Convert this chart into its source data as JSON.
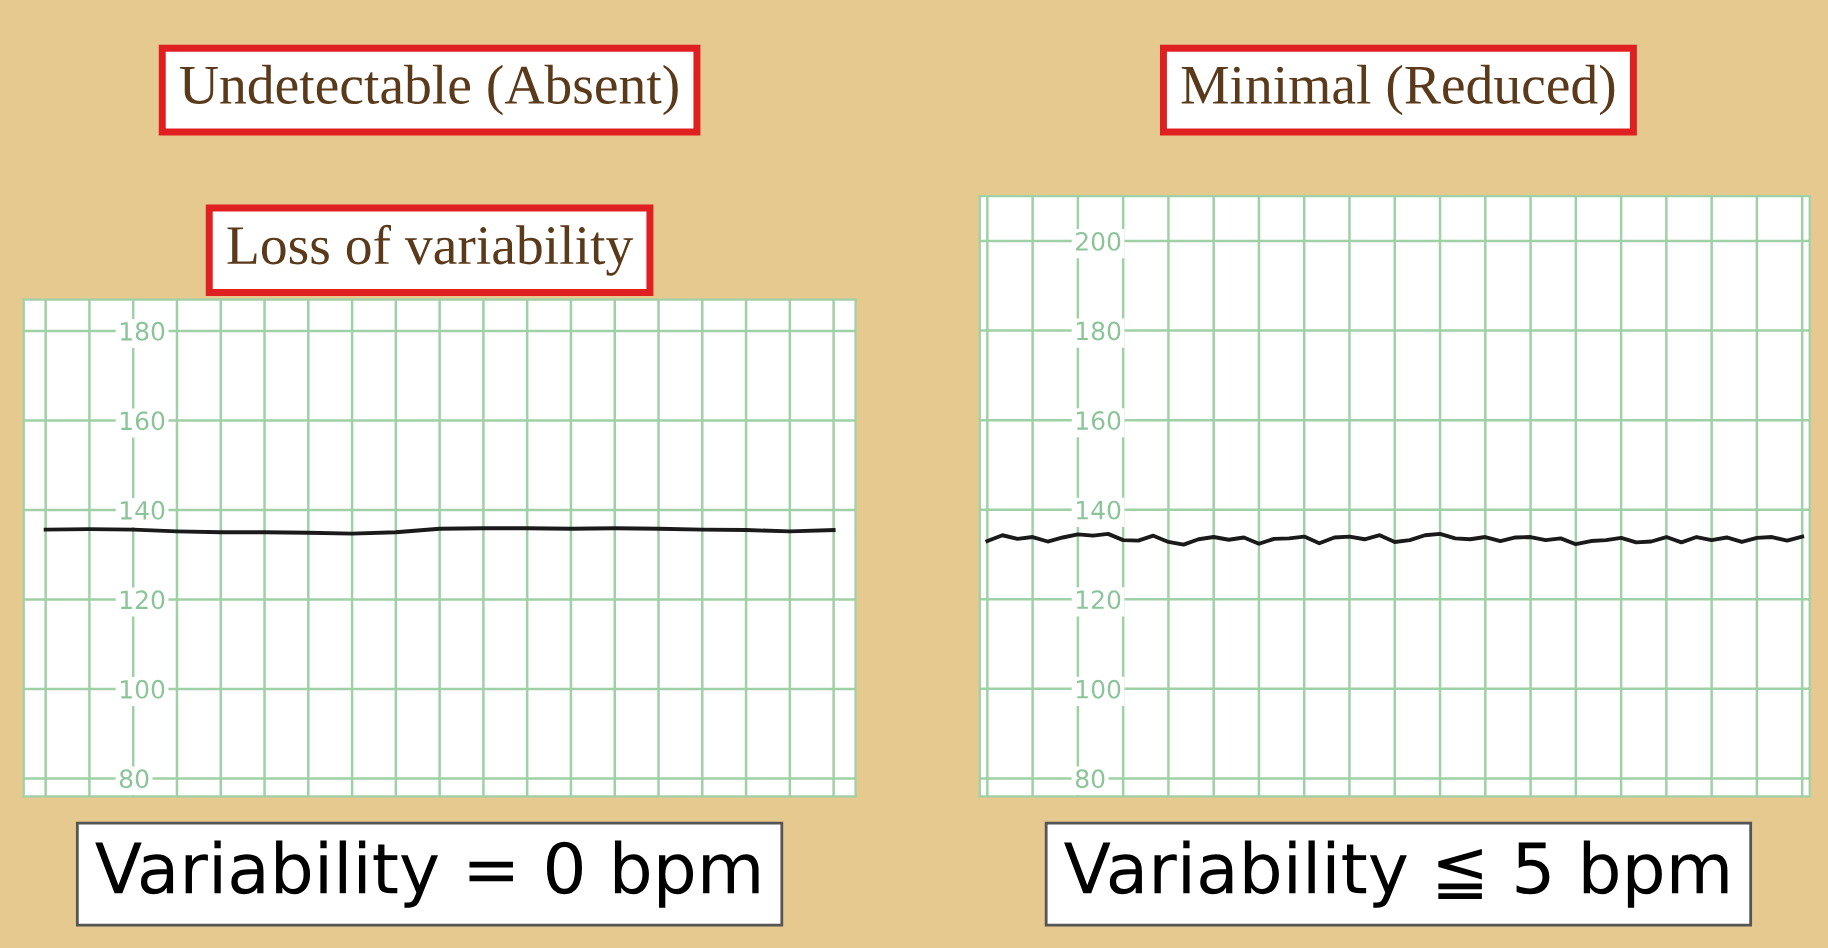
{
  "chart_data": [
    {
      "type": "line",
      "title": "Undetectable (Absent)",
      "annotations": [
        "Loss of variability",
        "Variability = 0 bpm"
      ],
      "categories": [
        null,
        null,
        null,
        null,
        null,
        null,
        null,
        null,
        null,
        null,
        null,
        null,
        null,
        null,
        null,
        null,
        null,
        null,
        null
      ],
      "series": [
        {
          "color": "#1a1a1a",
          "values": [
            135.6,
            135.7,
            135.6,
            135.2,
            135.0,
            135.0,
            134.9,
            134.7,
            135.0,
            135.8,
            135.9,
            135.9,
            135.8,
            135.9,
            135.8,
            135.6,
            135.5,
            135.2,
            135.5
          ]
        }
      ],
      "ylim": [
        76,
        187
      ],
      "yticks": [
        80,
        100,
        120,
        140,
        160,
        180
      ],
      "grid": true,
      "tick_labels": "y",
      "marker": "none",
      "line_style": "solid"
    },
    {
      "type": "line",
      "title": "Minimal (Reduced)",
      "annotations": [
        "Variability ≦ 5 bpm"
      ],
      "categories": [
        null,
        null,
        null,
        null,
        null,
        null,
        null,
        null,
        null,
        null,
        null,
        null,
        null,
        null,
        null,
        null,
        null,
        null,
        null,
        null,
        null,
        null,
        null,
        null,
        null,
        null,
        null,
        null,
        null,
        null,
        null,
        null,
        null,
        null,
        null,
        null,
        null,
        null,
        null,
        null,
        null,
        null,
        null,
        null,
        null,
        null,
        null,
        null,
        null,
        null,
        null,
        null,
        null,
        null,
        null
      ],
      "series": [
        {
          "color": "#1a1a1a",
          "values": [
            133.0,
            134.3,
            133.5,
            133.9,
            132.9,
            133.8,
            134.5,
            134.2,
            134.6,
            133.2,
            133.1,
            134.2,
            132.8,
            132.2,
            133.4,
            133.9,
            133.3,
            133.8,
            132.4,
            133.5,
            133.6,
            134.0,
            132.5,
            133.8,
            134.0,
            133.4,
            134.3,
            132.8,
            133.2,
            134.3,
            134.6,
            133.6,
            133.4,
            133.9,
            133.0,
            133.8,
            133.9,
            133.2,
            133.6,
            132.3,
            133.0,
            133.2,
            133.7,
            132.7,
            132.9,
            133.9,
            132.7,
            133.9,
            133.2,
            133.8,
            132.8,
            133.7,
            133.9,
            133.1,
            134.0
          ]
        }
      ],
      "ylim": [
        76,
        210
      ],
      "yticks": [
        80,
        100,
        120,
        140,
        160,
        180,
        200
      ],
      "grid": true,
      "tick_labels": "y",
      "marker": "none",
      "line_style": "solid"
    }
  ]
}
